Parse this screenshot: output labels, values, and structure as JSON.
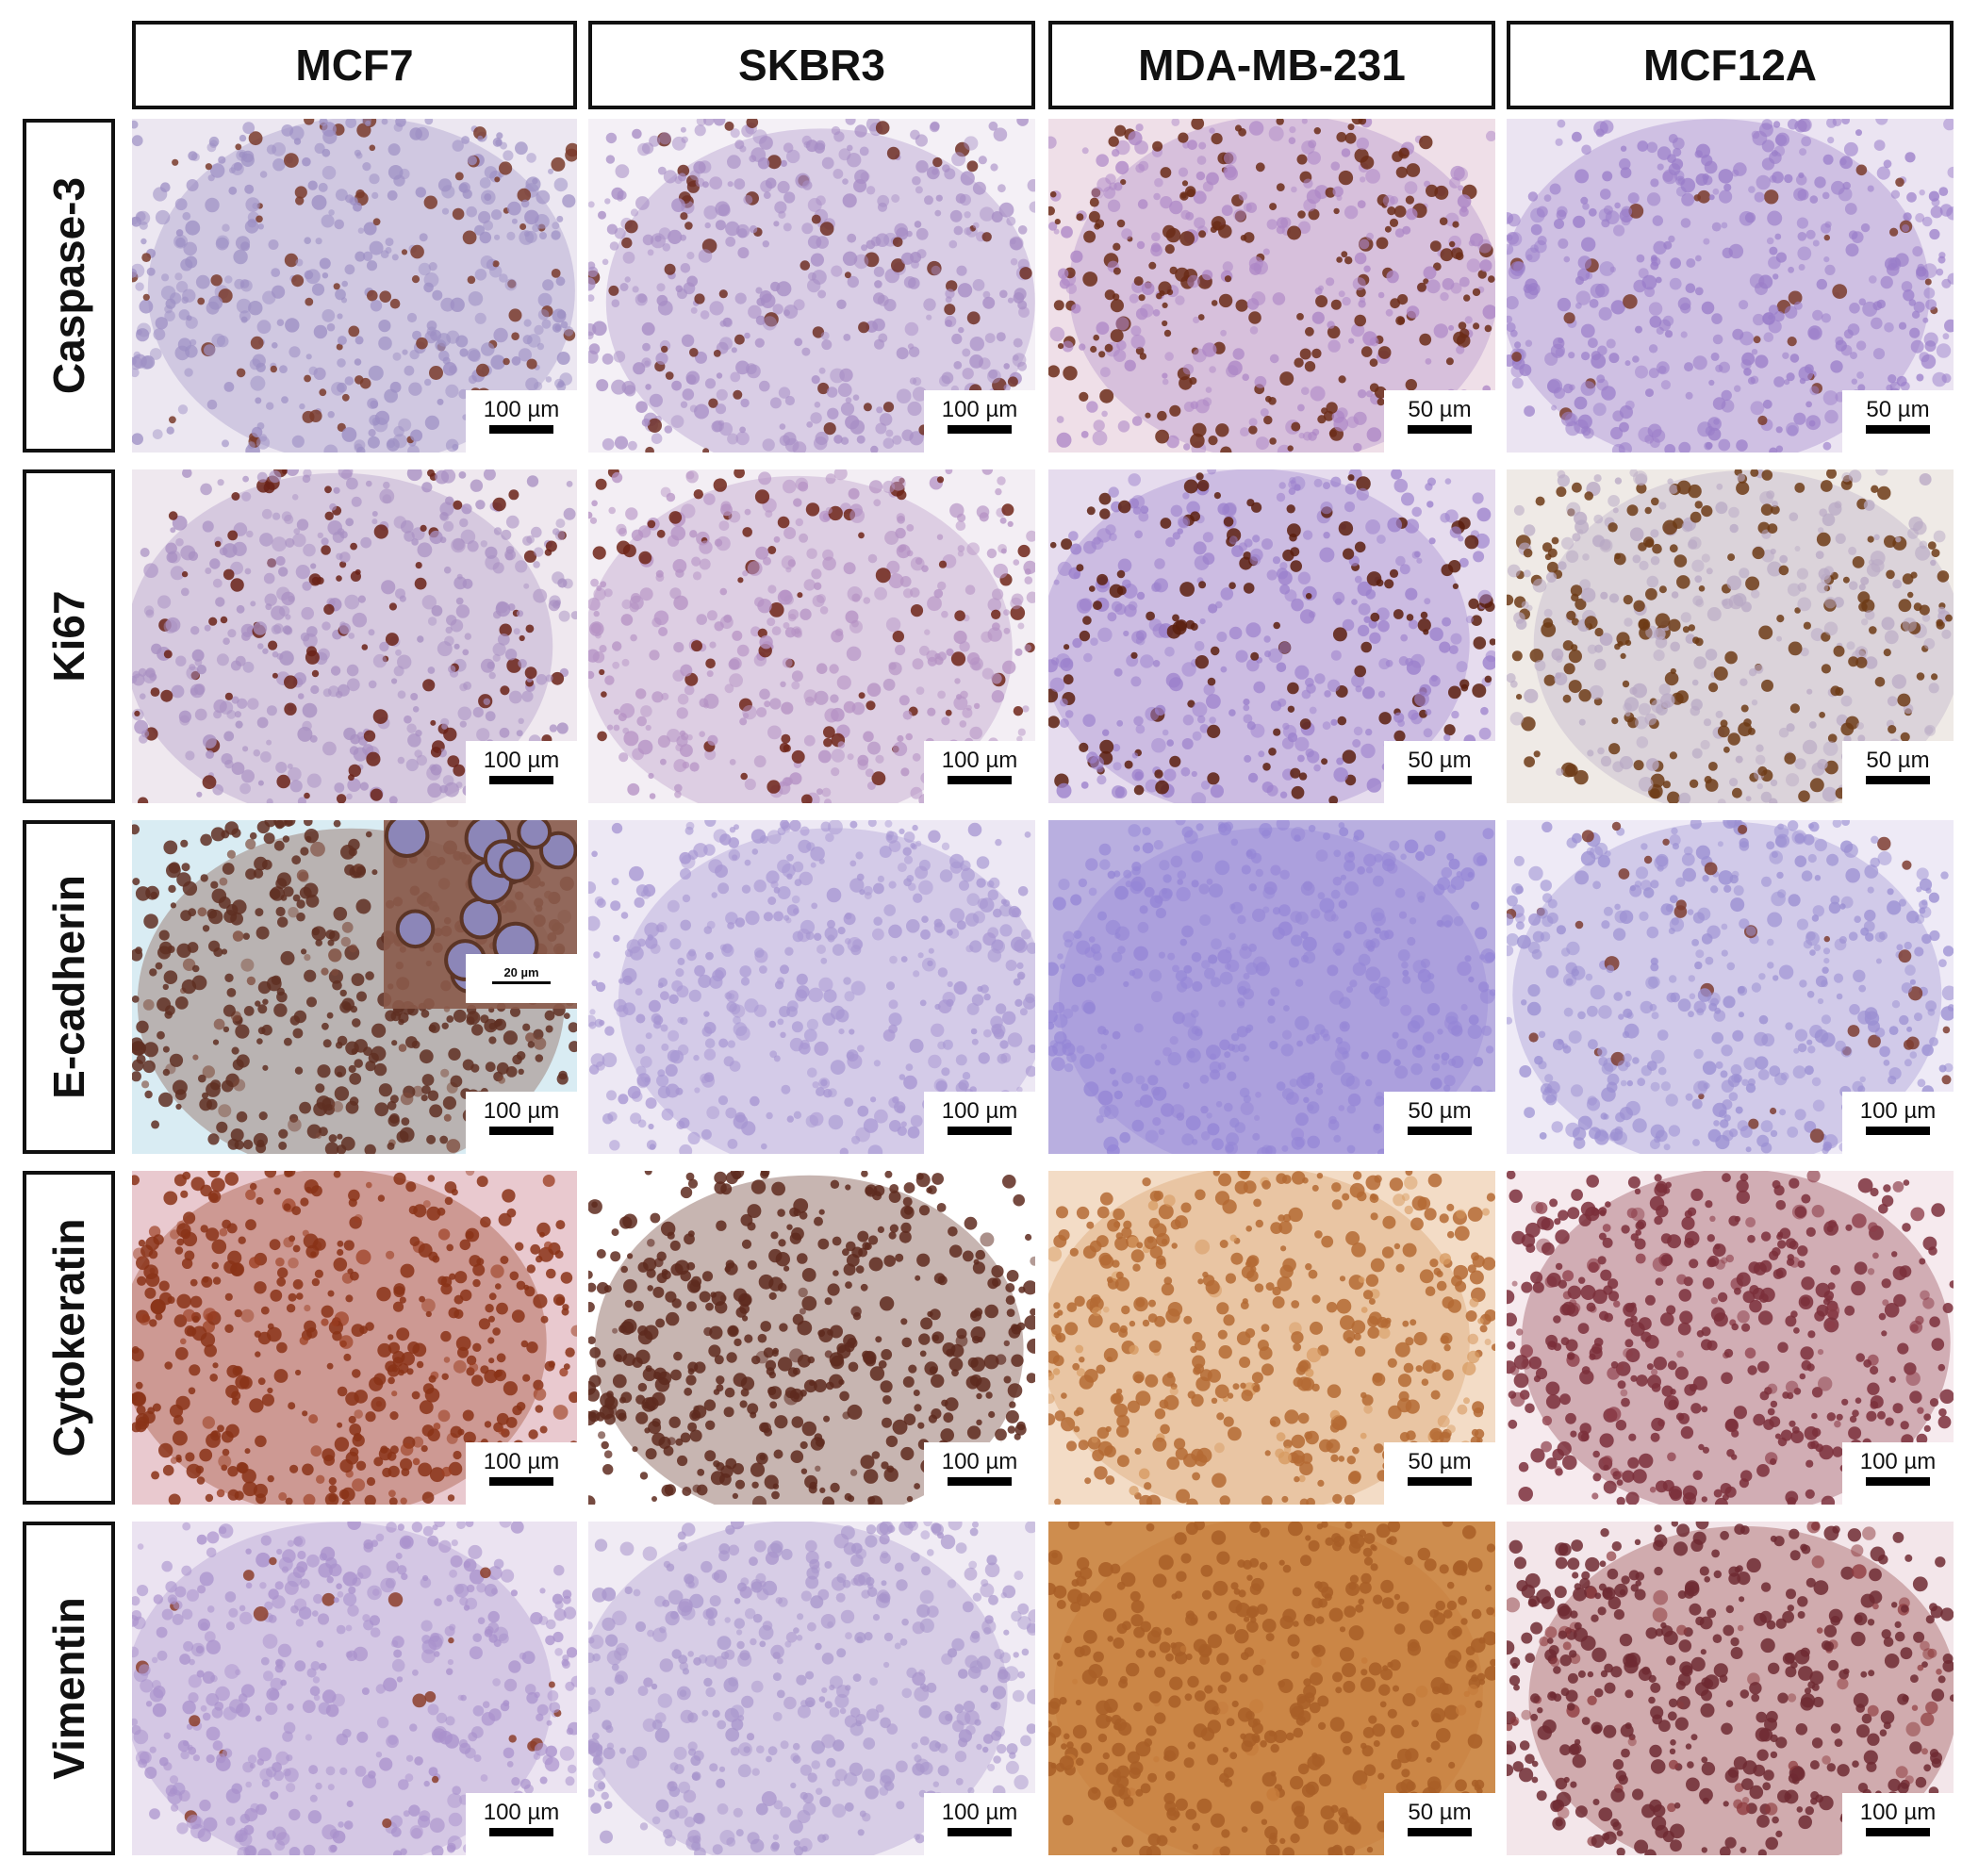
{
  "figure": {
    "columns": [
      {
        "label": "MCF7"
      },
      {
        "label": "SKBR3"
      },
      {
        "label": "MDA-MB-231"
      },
      {
        "label": "MCF12A"
      }
    ],
    "rows": [
      {
        "label": "Caspase-3"
      },
      {
        "label": "Ki67"
      },
      {
        "label": "E-cadherin"
      },
      {
        "label": "Cytokeratin"
      },
      {
        "label": "Vimentin"
      }
    ],
    "panels": [
      [
        {
          "scale": "100 µm",
          "bg": "#ece7f1",
          "cells": "#9d8fc4",
          "stain": "#7a3b2b",
          "stain_level": 0.18
        },
        {
          "scale": "100 µm",
          "bg": "#f4f0f6",
          "cells": "#a78dc5",
          "stain": "#6e2f25",
          "stain_level": 0.12
        },
        {
          "scale": "50 µm",
          "bg": "#efdfe8",
          "cells": "#ad86c6",
          "stain": "#6b2b17",
          "stain_level": 0.45
        },
        {
          "scale": "50 µm",
          "bg": "#ebe4f2",
          "cells": "#9a7dc9",
          "stain": "#7a3b2b",
          "stain_level": 0.04
        }
      ],
      [
        {
          "scale": "100 µm",
          "bg": "#efe8ef",
          "cells": "#a88fc2",
          "stain": "#6a2217",
          "stain_level": 0.2
        },
        {
          "scale": "100 µm",
          "bg": "#f3eef4",
          "cells": "#b592c4",
          "stain": "#6e2518",
          "stain_level": 0.15
        },
        {
          "scale": "50 µm",
          "bg": "#e6dcee",
          "cells": "#9b80cc",
          "stain": "#5a1f0e",
          "stain_level": 0.3
        },
        {
          "scale": "50 µm",
          "bg": "#efeae6",
          "cells": "#b8a8c4",
          "stain": "#6d3b16",
          "stain_level": 0.45
        }
      ],
      [
        {
          "scale": "100 µm",
          "bg": "#d9ecf3",
          "cells": "#7d4a3a",
          "stain": "#5f2f22",
          "stain_level": 0.9,
          "inset_scale": "20 µm"
        },
        {
          "scale": "100 µm",
          "bg": "#ede8f4",
          "cells": "#a796d2",
          "stain": "#7a3b2b",
          "stain_level": 0.0
        },
        {
          "scale": "50 µm",
          "bg": "#b9afe0",
          "cells": "#9485d6",
          "stain": "#7a3b2b",
          "stain_level": 0.0
        },
        {
          "scale": "100 µm",
          "bg": "#eeeaf6",
          "cells": "#9b8fd2",
          "stain": "#7e3d31",
          "stain_level": 0.08
        }
      ],
      [
        {
          "scale": "100 µm",
          "bg": "#e9c9cf",
          "cells": "#9c3f22",
          "stain": "#8a3317",
          "stain_level": 0.85
        },
        {
          "scale": "100 µm",
          "bg": "#ffffff",
          "cells": "#5e2a1f",
          "stain": "#5e2a1f",
          "stain_level": 0.95
        },
        {
          "scale": "50 µm",
          "bg": "#f3dcc6",
          "cells": "#d79a60",
          "stain": "#b46a34",
          "stain_level": 0.85
        },
        {
          "scale": "100 µm",
          "bg": "#f6eaee",
          "cells": "#8c3c48",
          "stain": "#7b2f3b",
          "stain_level": 0.8
        }
      ],
      [
        {
          "scale": "100 µm",
          "bg": "#ebe3f1",
          "cells": "#a991cc",
          "stain": "#8c3e2c",
          "stain_level": 0.04
        },
        {
          "scale": "100 µm",
          "bg": "#f0ebf4",
          "cells": "#a895cc",
          "stain": "#7a3b2b",
          "stain_level": 0.0
        },
        {
          "scale": "50 µm",
          "bg": "#ce8d4e",
          "cells": "#c57a3a",
          "stain": "#a85e27",
          "stain_level": 0.95
        },
        {
          "scale": "100 µm",
          "bg": "#f3e6ea",
          "cells": "#8e3b3e",
          "stain": "#6f2a33",
          "stain_level": 0.85
        }
      ]
    ]
  }
}
